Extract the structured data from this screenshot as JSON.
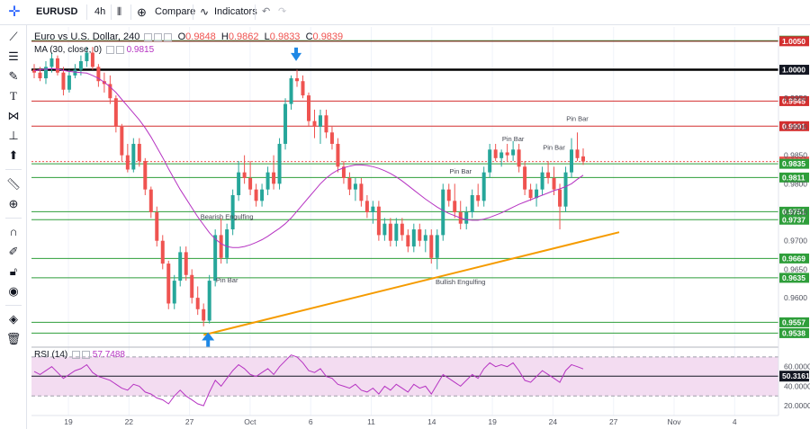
{
  "header": {
    "symbol": "EURUSD",
    "interval": "4h",
    "compare_label": "Compare",
    "indicators_label": "Indicators"
  },
  "legend": {
    "title": "Euro vs U.S. Dollar, 240",
    "o_label": "O",
    "o_value": "0.9848",
    "h_label": "H",
    "h_value": "0.9862",
    "l_label": "L",
    "l_value": "0.9833",
    "c_label": "C",
    "c_value": "0.9839",
    "ma_label": "MA (30, close, 0)",
    "ma_value": "0.9815",
    "rsi_label": "RSI (14)",
    "rsi_value": "57.7488"
  },
  "toolbar_icons": [
    "crosshair-icon",
    "trend-line-icon",
    "fib-icon",
    "brush-icon",
    "text-icon",
    "pattern-icon",
    "measure-icon",
    "arrow-icon",
    "ruler-icon",
    "zoom-icon",
    "magnet-icon",
    "lock-icon",
    "lock-open-icon",
    "eye-icon",
    "layers-icon",
    "trash-icon"
  ],
  "colors": {
    "up": "#26a69a",
    "down": "#ef5350",
    "ma": "#b633c2",
    "rsi": "#b633c2",
    "support": "#2e9e3a",
    "resistance": "#d32f2f",
    "trend": "#f59b00",
    "arrow": "#1e88e5"
  },
  "chart_data": {
    "type": "candlestick",
    "title": "Euro vs U.S. Dollar, 240",
    "x_ticks": [
      "19",
      "22",
      "27",
      "Oct",
      "6",
      "11",
      "14",
      "19",
      "24",
      "27",
      "Nov",
      "4"
    ],
    "y_ticks": [
      "0.9950",
      "0.9900",
      "0.9850",
      "0.9800",
      "0.9750",
      "0.9700",
      "0.9650",
      "0.9600"
    ],
    "ylim": [
      0.9515,
      1.0075
    ],
    "horizontal_levels": [
      {
        "value": "1.0051",
        "kind": "support"
      },
      {
        "value": "1.0050",
        "kind": "resistance"
      },
      {
        "value": "1.0000",
        "kind": "major"
      },
      {
        "value": "0.9945",
        "kind": "resistance"
      },
      {
        "value": "0.9901",
        "kind": "resistance"
      },
      {
        "value": "0.9839",
        "kind": "current"
      },
      {
        "value": "0.9835",
        "kind": "support"
      },
      {
        "value": "0.9811",
        "kind": "support"
      },
      {
        "value": "0.9751",
        "kind": "support"
      },
      {
        "value": "0.9737",
        "kind": "support"
      },
      {
        "value": "0.9669",
        "kind": "support"
      },
      {
        "value": "0.9635",
        "kind": "support"
      },
      {
        "value": "0.9557",
        "kind": "support"
      },
      {
        "value": "0.9538",
        "kind": "support"
      }
    ],
    "annotations": [
      "Bearish Engulfing",
      "Pin Bar",
      "Pin Bar",
      "Bullish Engulfing",
      "Pin Bar",
      "Pin Bar",
      "Pin Bar"
    ],
    "candles": [
      [
        1.0,
        1.001,
        0.9985,
        0.9995
      ],
      [
        0.9995,
        1.0005,
        0.998,
        0.9985
      ],
      [
        0.9985,
        1.0015,
        0.9975,
        1.0005
      ],
      [
        1.0005,
        1.003,
        0.9995,
        1.002
      ],
      [
        1.002,
        1.0025,
        0.999,
        0.9995
      ],
      [
        0.9995,
        1.0005,
        0.9955,
        0.9965
      ],
      [
        0.9965,
        1.0,
        0.996,
        0.999
      ],
      [
        0.999,
        1.001,
        0.9985,
        1.0
      ],
      [
        1.0,
        1.0025,
        0.999,
        1.0015
      ],
      [
        1.0015,
        1.004,
        1.0005,
        1.003
      ],
      [
        1.003,
        1.004,
        1.0,
        1.0005
      ],
      [
        1.0005,
        1.001,
        0.997,
        0.998
      ],
      [
        0.998,
        0.9995,
        0.996,
        0.9975
      ],
      [
        0.9975,
        0.999,
        0.994,
        0.995
      ],
      [
        0.995,
        0.9955,
        0.989,
        0.99
      ],
      [
        0.99,
        0.9905,
        0.984,
        0.985
      ],
      [
        0.985,
        0.987,
        0.982,
        0.9825
      ],
      [
        0.9825,
        0.988,
        0.982,
        0.987
      ],
      [
        0.987,
        0.988,
        0.983,
        0.984
      ],
      [
        0.984,
        0.9845,
        0.978,
        0.979
      ],
      [
        0.979,
        0.9795,
        0.974,
        0.975
      ],
      [
        0.975,
        0.976,
        0.969,
        0.97
      ],
      [
        0.97,
        0.971,
        0.965,
        0.966
      ],
      [
        0.966,
        0.9665,
        0.958,
        0.959
      ],
      [
        0.959,
        0.964,
        0.958,
        0.963
      ],
      [
        0.963,
        0.969,
        0.962,
        0.968
      ],
      [
        0.968,
        0.969,
        0.963,
        0.964
      ],
      [
        0.964,
        0.965,
        0.959,
        0.96
      ],
      [
        0.96,
        0.962,
        0.957,
        0.958
      ],
      [
        0.958,
        0.959,
        0.955,
        0.956
      ],
      [
        0.956,
        0.964,
        0.9555,
        0.963
      ],
      [
        0.963,
        0.972,
        0.962,
        0.971
      ],
      [
        0.971,
        0.974,
        0.966,
        0.967
      ],
      [
        0.967,
        0.973,
        0.966,
        0.972
      ],
      [
        0.972,
        0.979,
        0.971,
        0.978
      ],
      [
        0.978,
        0.984,
        0.977,
        0.982
      ],
      [
        0.982,
        0.985,
        0.98,
        0.981
      ],
      [
        0.981,
        0.984,
        0.978,
        0.979
      ],
      [
        0.979,
        0.98,
        0.976,
        0.977
      ],
      [
        0.977,
        0.98,
        0.976,
        0.979
      ],
      [
        0.979,
        0.983,
        0.978,
        0.982
      ],
      [
        0.982,
        0.985,
        0.979,
        0.98
      ],
      [
        0.98,
        0.988,
        0.979,
        0.987
      ],
      [
        0.987,
        0.995,
        0.986,
        0.994
      ],
      [
        0.994,
        0.999,
        0.993,
        0.9985
      ],
      [
        0.9985,
        1.0,
        0.997,
        0.998
      ],
      [
        0.998,
        0.999,
        0.995,
        0.9955
      ],
      [
        0.9955,
        0.996,
        0.99,
        0.991
      ],
      [
        0.991,
        0.993,
        0.988,
        0.99
      ],
      [
        0.99,
        0.993,
        0.987,
        0.992
      ],
      [
        0.992,
        0.993,
        0.988,
        0.989
      ],
      [
        0.989,
        0.99,
        0.986,
        0.987
      ],
      [
        0.987,
        0.988,
        0.982,
        0.983
      ],
      [
        0.983,
        0.984,
        0.98,
        0.981
      ],
      [
        0.981,
        0.982,
        0.978,
        0.979
      ],
      [
        0.979,
        0.981,
        0.977,
        0.98
      ],
      [
        0.98,
        0.981,
        0.976,
        0.977
      ],
      [
        0.977,
        0.978,
        0.974,
        0.975
      ],
      [
        0.975,
        0.977,
        0.973,
        0.976
      ],
      [
        0.976,
        0.977,
        0.97,
        0.971
      ],
      [
        0.971,
        0.974,
        0.97,
        0.973
      ],
      [
        0.973,
        0.974,
        0.969,
        0.97
      ],
      [
        0.97,
        0.974,
        0.969,
        0.973
      ],
      [
        0.973,
        0.974,
        0.97,
        0.971
      ],
      [
        0.971,
        0.972,
        0.968,
        0.969
      ],
      [
        0.969,
        0.973,
        0.968,
        0.972
      ],
      [
        0.972,
        0.973,
        0.969,
        0.97
      ],
      [
        0.97,
        0.972,
        0.968,
        0.971
      ],
      [
        0.971,
        0.972,
        0.966,
        0.967
      ],
      [
        0.967,
        0.972,
        0.965,
        0.971
      ],
      [
        0.971,
        0.98,
        0.97,
        0.979
      ],
      [
        0.979,
        0.98,
        0.976,
        0.977
      ],
      [
        0.977,
        0.98,
        0.974,
        0.975
      ],
      [
        0.975,
        0.977,
        0.972,
        0.973
      ],
      [
        0.973,
        0.976,
        0.972,
        0.975
      ],
      [
        0.975,
        0.979,
        0.974,
        0.978
      ],
      [
        0.978,
        0.98,
        0.976,
        0.977
      ],
      [
        0.977,
        0.983,
        0.976,
        0.982
      ],
      [
        0.982,
        0.987,
        0.981,
        0.986
      ],
      [
        0.986,
        0.987,
        0.984,
        0.9845
      ],
      [
        0.9845,
        0.986,
        0.983,
        0.9855
      ],
      [
        0.9855,
        0.987,
        0.984,
        0.985
      ],
      [
        0.985,
        0.9875,
        0.984,
        0.986
      ],
      [
        0.986,
        0.987,
        0.982,
        0.983
      ],
      [
        0.983,
        0.984,
        0.978,
        0.979
      ],
      [
        0.979,
        0.98,
        0.977,
        0.9775
      ],
      [
        0.9775,
        0.98,
        0.976,
        0.979
      ],
      [
        0.979,
        0.983,
        0.978,
        0.982
      ],
      [
        0.982,
        0.984,
        0.98,
        0.981
      ],
      [
        0.981,
        0.983,
        0.978,
        0.979
      ],
      [
        0.979,
        0.98,
        0.972,
        0.976
      ],
      [
        0.976,
        0.983,
        0.975,
        0.982
      ],
      [
        0.982,
        0.988,
        0.981,
        0.986
      ],
      [
        0.986,
        0.989,
        0.984,
        0.9845
      ],
      [
        0.9848,
        0.9862,
        0.9833,
        0.9839
      ]
    ],
    "ma_30": [
      0.9998,
      1.0,
      1.0001,
      1.0002,
      1.0001,
      0.9999,
      0.9997,
      0.9996,
      0.9995,
      0.9994,
      0.999,
      0.9985,
      0.9978,
      0.997,
      0.996,
      0.9948,
      0.9936,
      0.9924,
      0.9912,
      0.9898,
      0.9882,
      0.9864,
      0.9846,
      0.9826,
      0.9808,
      0.979,
      0.9774,
      0.9758,
      0.9742,
      0.9728,
      0.9714,
      0.9703,
      0.9695,
      0.969,
      0.9688,
      0.9688,
      0.969,
      0.9693,
      0.9697,
      0.9702,
      0.9708,
      0.9715,
      0.9722,
      0.973,
      0.974,
      0.9752,
      0.9764,
      0.9776,
      0.9788,
      0.98,
      0.981,
      0.9818,
      0.9824,
      0.9828,
      0.9831,
      0.9833,
      0.9833,
      0.9832,
      0.983,
      0.9827,
      0.9823,
      0.9818,
      0.9812,
      0.9805,
      0.9797,
      0.9789,
      0.9781,
      0.9773,
      0.9766,
      0.9759,
      0.9753,
      0.9748,
      0.9744,
      0.974,
      0.9737,
      0.9736,
      0.9736,
      0.9738,
      0.9741,
      0.9745,
      0.9749,
      0.9754,
      0.9759,
      0.9764,
      0.9768,
      0.9772,
      0.9776,
      0.978,
      0.9784,
      0.9788,
      0.9791,
      0.9795,
      0.98,
      0.9808,
      0.9815
    ],
    "rsi": {
      "label": "RSI (14)",
      "ylim": [
        10,
        80
      ],
      "ticks": [
        "60.0000",
        "40.0000",
        "20.0000"
      ],
      "band": [
        30,
        70
      ],
      "level_label": "50.3161",
      "values": [
        55,
        52,
        56,
        60,
        54,
        48,
        52,
        56,
        58,
        62,
        54,
        50,
        48,
        46,
        42,
        38,
        36,
        42,
        40,
        34,
        32,
        28,
        26,
        22,
        30,
        36,
        30,
        26,
        22,
        20,
        34,
        46,
        40,
        48,
        56,
        62,
        58,
        52,
        50,
        54,
        58,
        52,
        60,
        66,
        72,
        70,
        64,
        56,
        54,
        58,
        50,
        48,
        42,
        40,
        38,
        42,
        36,
        34,
        38,
        32,
        40,
        36,
        42,
        38,
        34,
        42,
        38,
        40,
        32,
        42,
        52,
        48,
        44,
        40,
        46,
        52,
        48,
        58,
        64,
        60,
        62,
        60,
        64,
        56,
        46,
        44,
        50,
        56,
        52,
        48,
        44,
        56,
        62,
        60,
        57.7488
      ]
    }
  }
}
